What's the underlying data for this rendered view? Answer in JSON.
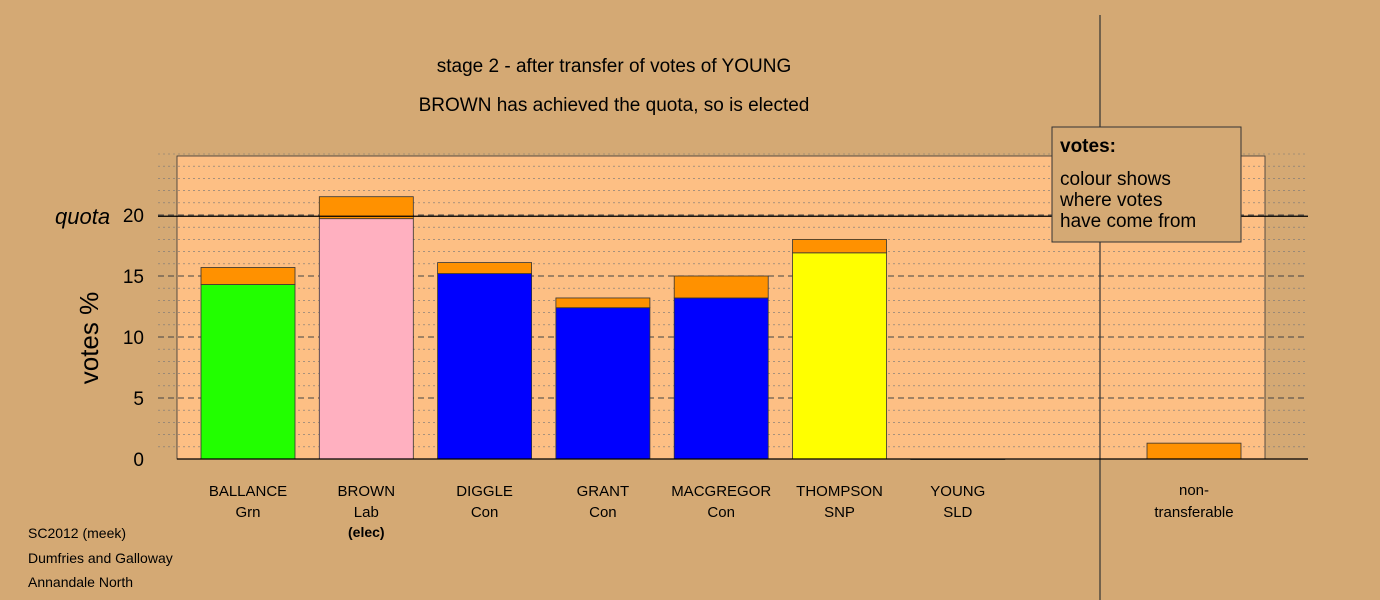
{
  "chart_data": {
    "type": "bar",
    "title": "stage 2 - after transfer of votes of YOUNG",
    "subtitle": "BROWN has achieved the quota, so is elected",
    "ylabel": "votes %",
    "ylim": [
      0,
      25
    ],
    "yticks": [
      0,
      5,
      10,
      15,
      20
    ],
    "quota": 19.9,
    "quota_label": "quota",
    "categories": [
      {
        "name": "BALLANCE",
        "party": "Grn",
        "note": ""
      },
      {
        "name": "BROWN",
        "party": "Lab",
        "note": "(elec)"
      },
      {
        "name": "DIGGLE",
        "party": "Con",
        "note": ""
      },
      {
        "name": "GRANT",
        "party": "Con",
        "note": ""
      },
      {
        "name": "MACGREGOR",
        "party": "Con",
        "note": ""
      },
      {
        "name": "THOMPSON",
        "party": "SNP",
        "note": ""
      },
      {
        "name": "YOUNG",
        "party": "SLD",
        "note": ""
      }
    ],
    "base_values": [
      14.3,
      19.7,
      15.2,
      12.4,
      13.2,
      16.9,
      0
    ],
    "base_colors": [
      "#22ff00",
      "#ffb0c0",
      "#0000ff",
      "#0000ff",
      "#0000ff",
      "#ffff00",
      "#ffa000"
    ],
    "transfer_values": [
      1.4,
      1.8,
      0.9,
      0.8,
      1.8,
      1.1,
      0
    ],
    "transfer_color": "#ff9100",
    "nontransferable": {
      "label_line1": "non-",
      "label_line2": "transferable",
      "value": 1.3
    },
    "legend": {
      "title": "votes:",
      "lines": [
        "colour shows",
        "where votes",
        "have come from"
      ],
      "placement": "top-right"
    }
  },
  "footer": {
    "line1": "SC2012 (meek)",
    "line2": "Dumfries and Galloway",
    "line3": "Annandale North"
  }
}
